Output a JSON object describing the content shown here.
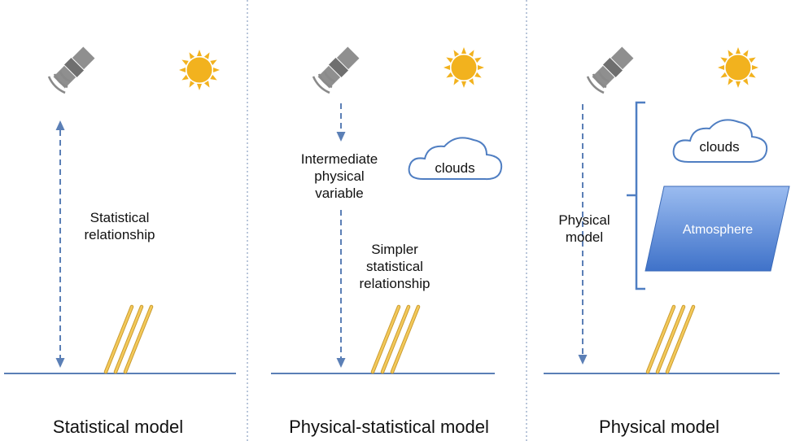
{
  "panels": [
    {
      "caption": "Statistical model",
      "annotation_lines": [
        "Statistical",
        "relationship"
      ]
    },
    {
      "caption": "Physical-statistical model",
      "annotation_top_lines": [
        "Intermediate",
        "physical",
        "variable"
      ],
      "annotation_bottom_lines": [
        "Simpler",
        "statistical",
        "relationship"
      ],
      "cloud_label": "clouds"
    },
    {
      "caption": "Physical model",
      "annotation_lines": [
        "Physical",
        "model"
      ],
      "cloud_label": "clouds",
      "atmosphere_label": "Atmosphere"
    }
  ],
  "icons": [
    "satellite-icon",
    "sun-icon",
    "sunlight-rays-icon",
    "cloud-icon"
  ],
  "colors": {
    "arrow": "#5b7fb6",
    "ground": "#5b7fb6",
    "divider": "#8a9fc0",
    "sun": "#f2b21e",
    "rays": "#e9b73f",
    "satellite": "#8a8a8a",
    "cloud_outline": "#4f7ec2",
    "atmosphere_fill": "#5f8fdc",
    "atmosphere_bracket": "#4f7ec2"
  }
}
